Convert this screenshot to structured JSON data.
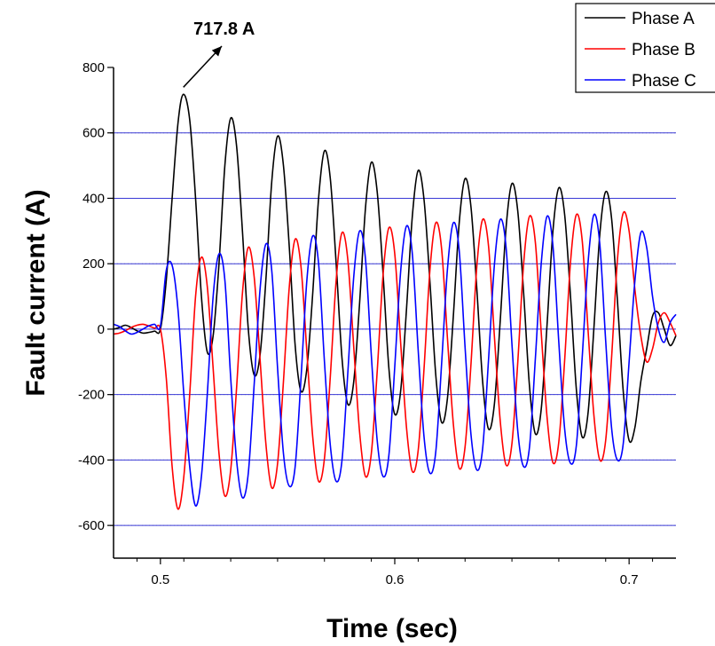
{
  "chart_data": {
    "type": "line",
    "title": "",
    "xlabel": "Time (sec)",
    "ylabel": "Fault current (A)",
    "xlim": [
      0.48,
      0.72
    ],
    "ylim": [
      -700,
      800
    ],
    "x_ticks": [
      0.5,
      0.6,
      0.7
    ],
    "x_tick_labels": [
      "0.5",
      "0.6",
      "0.7"
    ],
    "y_ticks": [
      -600,
      -400,
      -200,
      0,
      200,
      400,
      600,
      800
    ],
    "y_tick_labels": [
      "-600",
      "-400",
      "-200",
      "0",
      "200",
      "400",
      "600",
      "800"
    ],
    "grid": {
      "major_horizontal": true,
      "minor_horizontal_dotted": true,
      "major_color": "#3a3ad6",
      "minor_color": "#9a9a9a"
    },
    "legend_position": "top-right",
    "annotation": {
      "text": "717.8 A",
      "x": 0.5098,
      "y": 717.8
    },
    "series": [
      {
        "name": "Phase A",
        "color": "#000000",
        "points": [
          [
            0.48,
            0
          ],
          [
            0.4825,
            5
          ],
          [
            0.485,
            12
          ],
          [
            0.4875,
            5
          ],
          [
            0.49,
            -5
          ],
          [
            0.4925,
            -12
          ],
          [
            0.495,
            -10
          ],
          [
            0.4975,
            -6
          ],
          [
            0.5,
            0
          ],
          [
            0.5025,
            150
          ],
          [
            0.505,
            400
          ],
          [
            0.5075,
            630
          ],
          [
            0.5098,
            717.8
          ],
          [
            0.5125,
            640
          ],
          [
            0.515,
            400
          ],
          [
            0.5175,
            100
          ],
          [
            0.52,
            -70
          ],
          [
            0.5225,
            -20
          ],
          [
            0.525,
            200
          ],
          [
            0.5275,
            500
          ],
          [
            0.53,
            645
          ],
          [
            0.5325,
            560
          ],
          [
            0.535,
            300
          ],
          [
            0.5375,
            0
          ],
          [
            0.54,
            -140
          ],
          [
            0.5425,
            -80
          ],
          [
            0.545,
            150
          ],
          [
            0.5475,
            450
          ],
          [
            0.55,
            590
          ],
          [
            0.5525,
            500
          ],
          [
            0.555,
            250
          ],
          [
            0.5575,
            -50
          ],
          [
            0.56,
            -190
          ],
          [
            0.5625,
            -120
          ],
          [
            0.565,
            110
          ],
          [
            0.5675,
            400
          ],
          [
            0.57,
            545
          ],
          [
            0.5725,
            460
          ],
          [
            0.575,
            200
          ],
          [
            0.5775,
            -90
          ],
          [
            0.58,
            -230
          ],
          [
            0.5825,
            -160
          ],
          [
            0.585,
            80
          ],
          [
            0.5875,
            370
          ],
          [
            0.59,
            510
          ],
          [
            0.5925,
            420
          ],
          [
            0.595,
            170
          ],
          [
            0.5975,
            -120
          ],
          [
            0.6,
            -260
          ],
          [
            0.6025,
            -190
          ],
          [
            0.605,
            60
          ],
          [
            0.6075,
            345
          ],
          [
            0.61,
            485
          ],
          [
            0.6125,
            395
          ],
          [
            0.615,
            145
          ],
          [
            0.6175,
            -140
          ],
          [
            0.62,
            -285
          ],
          [
            0.6225,
            -210
          ],
          [
            0.625,
            40
          ],
          [
            0.6275,
            325
          ],
          [
            0.63,
            460
          ],
          [
            0.6325,
            375
          ],
          [
            0.635,
            125
          ],
          [
            0.6375,
            -160
          ],
          [
            0.64,
            -305
          ],
          [
            0.6425,
            -230
          ],
          [
            0.645,
            25
          ],
          [
            0.6475,
            310
          ],
          [
            0.65,
            445
          ],
          [
            0.6525,
            360
          ],
          [
            0.655,
            110
          ],
          [
            0.6575,
            -175
          ],
          [
            0.66,
            -320
          ],
          [
            0.6625,
            -245
          ],
          [
            0.665,
            15
          ],
          [
            0.6675,
            300
          ],
          [
            0.67,
            432
          ],
          [
            0.6725,
            350
          ],
          [
            0.675,
            100
          ],
          [
            0.6775,
            -185
          ],
          [
            0.68,
            -330
          ],
          [
            0.6825,
            -255
          ],
          [
            0.685,
            5
          ],
          [
            0.6875,
            290
          ],
          [
            0.69,
            420
          ],
          [
            0.6925,
            340
          ],
          [
            0.695,
            90
          ],
          [
            0.6975,
            -190
          ],
          [
            0.7,
            -340
          ],
          [
            0.7025,
            -300
          ],
          [
            0.705,
            -160
          ],
          [
            0.7075,
            -60
          ],
          [
            0.71,
            40
          ],
          [
            0.7125,
            50
          ],
          [
            0.715,
            0
          ],
          [
            0.7175,
            -50
          ],
          [
            0.72,
            -20
          ]
        ]
      },
      {
        "name": "Phase B",
        "color": "#ff0000",
        "points": [
          [
            0.48,
            -15
          ],
          [
            0.4825,
            -12
          ],
          [
            0.485,
            -5
          ],
          [
            0.4875,
            5
          ],
          [
            0.49,
            12
          ],
          [
            0.4925,
            15
          ],
          [
            0.495,
            10
          ],
          [
            0.4975,
            3
          ],
          [
            0.5,
            0
          ],
          [
            0.5025,
            -150
          ],
          [
            0.505,
            -420
          ],
          [
            0.5075,
            -550
          ],
          [
            0.51,
            -450
          ],
          [
            0.5125,
            -200
          ],
          [
            0.515,
            100
          ],
          [
            0.5175,
            220
          ],
          [
            0.52,
            130
          ],
          [
            0.5225,
            -120
          ],
          [
            0.525,
            -380
          ],
          [
            0.5275,
            -510
          ],
          [
            0.53,
            -430
          ],
          [
            0.5325,
            -180
          ],
          [
            0.535,
            110
          ],
          [
            0.5375,
            250
          ],
          [
            0.54,
            160
          ],
          [
            0.5425,
            -90
          ],
          [
            0.545,
            -350
          ],
          [
            0.5475,
            -485
          ],
          [
            0.55,
            -410
          ],
          [
            0.5525,
            -160
          ],
          [
            0.555,
            130
          ],
          [
            0.5575,
            275
          ],
          [
            0.56,
            190
          ],
          [
            0.5625,
            -70
          ],
          [
            0.565,
            -330
          ],
          [
            0.5675,
            -465
          ],
          [
            0.57,
            -395
          ],
          [
            0.5725,
            -145
          ],
          [
            0.575,
            150
          ],
          [
            0.5775,
            295
          ],
          [
            0.58,
            210
          ],
          [
            0.5825,
            -55
          ],
          [
            0.585,
            -315
          ],
          [
            0.5875,
            -450
          ],
          [
            0.59,
            -380
          ],
          [
            0.5925,
            -130
          ],
          [
            0.595,
            165
          ],
          [
            0.5975,
            310
          ],
          [
            0.6,
            230
          ],
          [
            0.6025,
            -40
          ],
          [
            0.605,
            -300
          ],
          [
            0.6075,
            -435
          ],
          [
            0.61,
            -370
          ],
          [
            0.6125,
            -120
          ],
          [
            0.615,
            180
          ],
          [
            0.6175,
            325
          ],
          [
            0.62,
            245
          ],
          [
            0.6225,
            -30
          ],
          [
            0.625,
            -290
          ],
          [
            0.6275,
            -425
          ],
          [
            0.63,
            -360
          ],
          [
            0.6325,
            -110
          ],
          [
            0.635,
            190
          ],
          [
            0.6375,
            335
          ],
          [
            0.64,
            255
          ],
          [
            0.6425,
            -20
          ],
          [
            0.645,
            -280
          ],
          [
            0.6475,
            -415
          ],
          [
            0.65,
            -350
          ],
          [
            0.6525,
            -100
          ],
          [
            0.655,
            200
          ],
          [
            0.6575,
            345
          ],
          [
            0.66,
            265
          ],
          [
            0.6625,
            -10
          ],
          [
            0.665,
            -270
          ],
          [
            0.6675,
            -408
          ],
          [
            0.67,
            -345
          ],
          [
            0.6725,
            -95
          ],
          [
            0.675,
            205
          ],
          [
            0.6775,
            350
          ],
          [
            0.68,
            270
          ],
          [
            0.6825,
            -5
          ],
          [
            0.685,
            -265
          ],
          [
            0.6875,
            -400
          ],
          [
            0.69,
            -340
          ],
          [
            0.6925,
            -90
          ],
          [
            0.695,
            210
          ],
          [
            0.6975,
            355
          ],
          [
            0.7,
            300
          ],
          [
            0.7025,
            120
          ],
          [
            0.705,
            -20
          ],
          [
            0.7075,
            -100
          ],
          [
            0.71,
            -60
          ],
          [
            0.7125,
            20
          ],
          [
            0.715,
            50
          ],
          [
            0.7175,
            20
          ],
          [
            0.72,
            -20
          ]
        ]
      },
      {
        "name": "Phase C",
        "color": "#0000ff",
        "points": [
          [
            0.48,
            15
          ],
          [
            0.4825,
            8
          ],
          [
            0.485,
            -5
          ],
          [
            0.4875,
            -15
          ],
          [
            0.49,
            -10
          ],
          [
            0.4925,
            0
          ],
          [
            0.495,
            10
          ],
          [
            0.4975,
            15
          ],
          [
            0.5,
            10
          ],
          [
            0.5025,
            180
          ],
          [
            0.505,
            195
          ],
          [
            0.5075,
            60
          ],
          [
            0.51,
            -200
          ],
          [
            0.5125,
            -420
          ],
          [
            0.515,
            -540
          ],
          [
            0.5175,
            -450
          ],
          [
            0.52,
            -200
          ],
          [
            0.5225,
            100
          ],
          [
            0.525,
            230
          ],
          [
            0.5275,
            150
          ],
          [
            0.53,
            -150
          ],
          [
            0.5325,
            -400
          ],
          [
            0.535,
            -515
          ],
          [
            0.5375,
            -440
          ],
          [
            0.54,
            -170
          ],
          [
            0.5425,
            120
          ],
          [
            0.545,
            260
          ],
          [
            0.5475,
            180
          ],
          [
            0.55,
            -120
          ],
          [
            0.5525,
            -380
          ],
          [
            0.555,
            -480
          ],
          [
            0.5575,
            -420
          ],
          [
            0.56,
            -150
          ],
          [
            0.5625,
            150
          ],
          [
            0.565,
            285
          ],
          [
            0.5675,
            200
          ],
          [
            0.57,
            -100
          ],
          [
            0.5725,
            -355
          ],
          [
            0.575,
            -465
          ],
          [
            0.5775,
            -400
          ],
          [
            0.58,
            -130
          ],
          [
            0.5825,
            160
          ],
          [
            0.585,
            300
          ],
          [
            0.5875,
            215
          ],
          [
            0.59,
            -80
          ],
          [
            0.5925,
            -340
          ],
          [
            0.595,
            -450
          ],
          [
            0.5975,
            -385
          ],
          [
            0.6,
            -115
          ],
          [
            0.6025,
            175
          ],
          [
            0.605,
            315
          ],
          [
            0.6075,
            230
          ],
          [
            0.61,
            -65
          ],
          [
            0.6125,
            -330
          ],
          [
            0.615,
            -440
          ],
          [
            0.6175,
            -375
          ],
          [
            0.62,
            -105
          ],
          [
            0.6225,
            185
          ],
          [
            0.625,
            325
          ],
          [
            0.6275,
            240
          ],
          [
            0.63,
            -55
          ],
          [
            0.6325,
            -320
          ],
          [
            0.635,
            -430
          ],
          [
            0.6375,
            -365
          ],
          [
            0.64,
            -95
          ],
          [
            0.6425,
            195
          ],
          [
            0.645,
            335
          ],
          [
            0.6475,
            250
          ],
          [
            0.65,
            -45
          ],
          [
            0.6525,
            -312
          ],
          [
            0.655,
            -420
          ],
          [
            0.6575,
            -360
          ],
          [
            0.66,
            -90
          ],
          [
            0.6625,
            200
          ],
          [
            0.665,
            345
          ],
          [
            0.6675,
            255
          ],
          [
            0.67,
            -40
          ],
          [
            0.6725,
            -305
          ],
          [
            0.675,
            -410
          ],
          [
            0.6775,
            -355
          ],
          [
            0.68,
            -85
          ],
          [
            0.6825,
            205
          ],
          [
            0.685,
            350
          ],
          [
            0.6875,
            260
          ],
          [
            0.69,
            -35
          ],
          [
            0.6925,
            -300
          ],
          [
            0.695,
            -400
          ],
          [
            0.6975,
            -350
          ],
          [
            0.7,
            -100
          ],
          [
            0.7025,
            150
          ],
          [
            0.705,
            295
          ],
          [
            0.7075,
            250
          ],
          [
            0.71,
            100
          ],
          [
            0.7125,
            0
          ],
          [
            0.715,
            -40
          ],
          [
            0.7175,
            20
          ],
          [
            0.72,
            45
          ]
        ]
      }
    ]
  }
}
